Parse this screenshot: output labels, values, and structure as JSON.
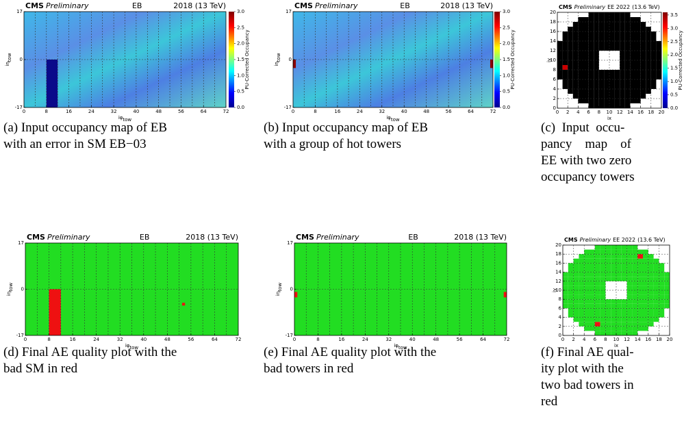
{
  "panels": [
    {
      "kind": "occupancy",
      "det": "eb",
      "header": {
        "cms": "CMS",
        "prelim": "Preliminary",
        "det": "EB",
        "energy": "2018 (13 TeV)"
      },
      "xlabel": {
        "main": "iφ",
        "sub": "tow"
      },
      "ylabel": {
        "main": "iη",
        "sub": "tow"
      },
      "xlim": [
        0,
        72
      ],
      "xticks": [
        0,
        8,
        16,
        24,
        32,
        40,
        48,
        56,
        64,
        72
      ],
      "ylim": [
        -17,
        17
      ],
      "yticks": [
        -17,
        0,
        17
      ],
      "cbar_label": "PU-Corrected Occupancy",
      "cbar_lim": [
        0,
        3
      ],
      "cbar_ticks": [
        {
          "value": 0,
          "label": "0.0"
        },
        {
          "value": 0.5,
          "label": "0.5"
        },
        {
          "value": 1,
          "label": "1.0"
        },
        {
          "value": 1.5,
          "label": "1.5"
        },
        {
          "value": 2,
          "label": "2.0"
        },
        {
          "value": 2.5,
          "label": "2.5"
        },
        {
          "value": 3,
          "label": "3.0"
        }
      ],
      "caption": [
        "(a) Input occupancy map of EB",
        "with an error in SM EB−03"
      ]
    },
    {
      "kind": "occupancy",
      "det": "eb",
      "header": {
        "cms": "CMS",
        "prelim": "Preliminary",
        "det": "EB",
        "energy": "2018 (13 TeV)"
      },
      "xlabel": {
        "main": "iφ",
        "sub": "tow"
      },
      "ylabel": {
        "main": "iη",
        "sub": "tow"
      },
      "xlim": [
        0,
        72
      ],
      "xticks": [
        0,
        8,
        16,
        24,
        32,
        40,
        48,
        56,
        64,
        72
      ],
      "ylim": [
        -17,
        17
      ],
      "yticks": [
        -17,
        0,
        17
      ],
      "cbar_label": "PU-Corrected Occupancy",
      "cbar_lim": [
        0,
        3
      ],
      "cbar_ticks": [
        {
          "value": 0,
          "label": "0.0"
        },
        {
          "value": 0.5,
          "label": "0.5"
        },
        {
          "value": 1,
          "label": "1.0"
        },
        {
          "value": 1.5,
          "label": "1.5"
        },
        {
          "value": 2,
          "label": "2.0"
        },
        {
          "value": 2.5,
          "label": "2.5"
        },
        {
          "value": 3,
          "label": "3.0"
        }
      ],
      "caption": [
        "(b) Input occupancy map of EB",
        "with a group of hot towers"
      ]
    },
    {
      "kind": "occupancy",
      "det": "ee",
      "header": {
        "cms": "CMS",
        "prelim": "Preliminary",
        "det": "EE 2022",
        "energy": "(13.6 TeV)"
      },
      "xlabel": {
        "main": "ix",
        "sub": ""
      },
      "ylabel": {
        "main": "iy",
        "sub": ""
      },
      "xlim": [
        0,
        20
      ],
      "xticks": [
        0,
        2,
        4,
        6,
        8,
        10,
        12,
        14,
        16,
        18,
        20
      ],
      "ylim": [
        0,
        20
      ],
      "yticks": [
        0,
        2,
        4,
        6,
        8,
        10,
        12,
        14,
        16,
        18,
        20
      ],
      "cbar_label": "PU-Corrected Occupancy",
      "cbar_lim": [
        0,
        3.6
      ],
      "cbar_ticks": [
        {
          "value": 0,
          "label": "0.0"
        },
        {
          "value": 0.5,
          "label": "0.5"
        },
        {
          "value": 1,
          "label": "1.0"
        },
        {
          "value": 1.5,
          "label": "1.5"
        },
        {
          "value": 2,
          "label": "2.0"
        },
        {
          "value": 2.5,
          "label": "2.5"
        },
        {
          "value": 3,
          "label": "3.0"
        },
        {
          "value": 3.5,
          "label": "3.5"
        }
      ],
      "caption": [
        "(c)  Input  occu-",
        "pancy    map    of",
        "EE with two zero",
        "occupancy towers"
      ]
    },
    {
      "kind": "quality",
      "det": "eb",
      "header": {
        "cms": "CMS",
        "prelim": "Preliminary",
        "det": "EB",
        "energy": "2018 (13 TeV)"
      },
      "xlabel": {
        "main": "iφ",
        "sub": "tow"
      },
      "ylabel": {
        "main": "iη",
        "sub": "tow"
      },
      "xlim": [
        0,
        72
      ],
      "xticks": [
        0,
        8,
        16,
        24,
        32,
        40,
        48,
        56,
        64,
        72
      ],
      "ylim": [
        -17,
        17
      ],
      "yticks": [
        -17,
        0,
        17
      ],
      "caption": [
        "(d) Final AE quality plot with the",
        "bad SM in red"
      ]
    },
    {
      "kind": "quality",
      "det": "eb",
      "header": {
        "cms": "CMS",
        "prelim": "Preliminary",
        "det": "EB",
        "energy": "2018 (13 TeV)"
      },
      "xlabel": {
        "main": "iφ",
        "sub": "tow"
      },
      "ylabel": {
        "main": "iη",
        "sub": "tow"
      },
      "xlim": [
        0,
        72
      ],
      "xticks": [
        0,
        8,
        16,
        24,
        32,
        40,
        48,
        56,
        64,
        72
      ],
      "ylim": [
        -17,
        17
      ],
      "yticks": [
        -17,
        0,
        17
      ],
      "caption": [
        "(e) Final AE quality plot with the",
        "bad towers in red"
      ]
    },
    {
      "kind": "quality",
      "det": "ee",
      "header": {
        "cms": "CMS",
        "prelim": "Preliminary",
        "det": "EE 2022",
        "energy": "(13.6 TeV)"
      },
      "xlabel": {
        "main": "ix",
        "sub": ""
      },
      "ylabel": {
        "main": "iy",
        "sub": ""
      },
      "xlim": [
        0,
        20
      ],
      "xticks": [
        0,
        2,
        4,
        6,
        8,
        10,
        12,
        14,
        16,
        18,
        20
      ],
      "ylim": [
        0,
        20
      ],
      "yticks": [
        0,
        2,
        4,
        6,
        8,
        10,
        12,
        14,
        16,
        18,
        20
      ],
      "caption": [
        "(f) Final AE qual-",
        "ity plot with the",
        "two bad towers in",
        "red"
      ]
    }
  ]
}
